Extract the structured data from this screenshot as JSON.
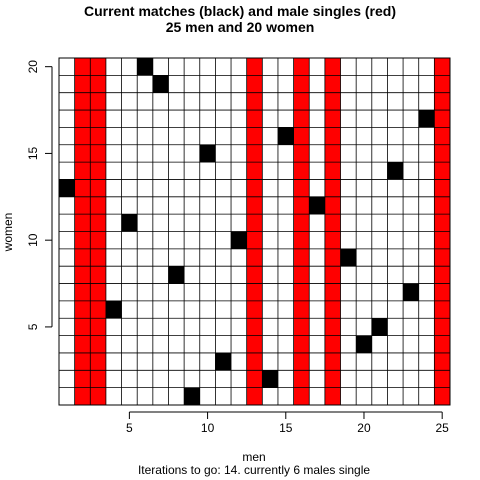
{
  "chart_data": {
    "type": "heatmap",
    "title": "Current matches (black) and male singles (red)",
    "subtitle": "25 men and 20 women",
    "xlabel": "men",
    "ylabel": "women",
    "footer": "Iterations to go: 14. currently 6 males single",
    "n_men": 25,
    "n_women": 20,
    "xlim": [
      0.5,
      25.5
    ],
    "ylim": [
      0.5,
      20.5
    ],
    "x_ticks": [
      5,
      10,
      15,
      20,
      25
    ],
    "y_ticks": [
      5,
      10,
      15,
      20
    ],
    "matches": [
      {
        "man": 1,
        "woman": 13
      },
      {
        "man": 4,
        "woman": 6
      },
      {
        "man": 5,
        "woman": 11
      },
      {
        "man": 6,
        "woman": 20
      },
      {
        "man": 7,
        "woman": 19
      },
      {
        "man": 8,
        "woman": 8
      },
      {
        "man": 9,
        "woman": 1
      },
      {
        "man": 10,
        "woman": 15
      },
      {
        "man": 11,
        "woman": 3
      },
      {
        "man": 12,
        "woman": 10
      },
      {
        "man": 14,
        "woman": 2
      },
      {
        "man": 15,
        "woman": 16
      },
      {
        "man": 17,
        "woman": 12
      },
      {
        "man": 19,
        "woman": 9
      },
      {
        "man": 20,
        "woman": 4
      },
      {
        "man": 21,
        "woman": 5
      },
      {
        "man": 22,
        "woman": 14
      },
      {
        "man": 23,
        "woman": 7
      },
      {
        "man": 24,
        "woman": 17
      }
    ],
    "single_men": [
      2,
      3,
      13,
      16,
      18,
      25
    ],
    "grid": true,
    "colors": {
      "match": "#000000",
      "single": "#ff0000",
      "empty": "#ffffff",
      "grid": "#000000"
    }
  }
}
